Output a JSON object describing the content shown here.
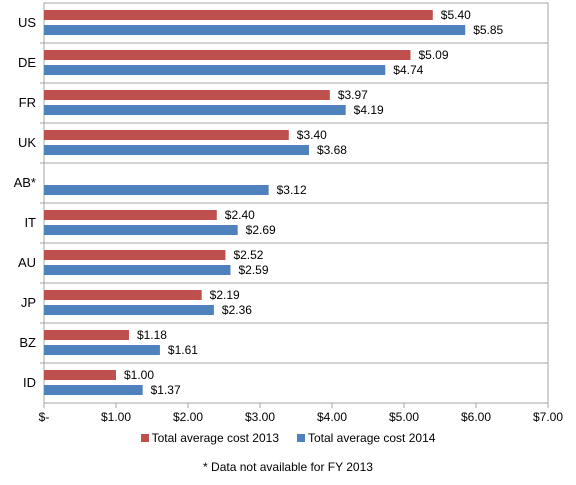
{
  "chart_data": {
    "type": "bar",
    "orientation": "horizontal",
    "categories": [
      "US",
      "DE",
      "FR",
      "UK",
      "AB*",
      "IT",
      "AU",
      "JP",
      "BZ",
      "ID"
    ],
    "series": [
      {
        "name": "Total average cost 2013",
        "color": "#c0504d",
        "values": [
          5.4,
          5.09,
          3.97,
          3.4,
          null,
          2.4,
          2.52,
          2.19,
          1.18,
          1.0
        ],
        "labels": [
          "$5.40",
          "$5.09",
          "$3.97",
          "$3.40",
          null,
          "$2.40",
          "$2.52",
          "$2.19",
          "$1.18",
          "$1.00"
        ]
      },
      {
        "name": "Total average cost 2014",
        "color": "#4f81bd",
        "values": [
          5.85,
          4.74,
          4.19,
          3.68,
          3.12,
          2.69,
          2.59,
          2.36,
          1.61,
          1.37
        ],
        "labels": [
          "$5.85",
          "$4.74",
          "$4.19",
          "$3.68",
          "$3.12",
          "$2.69",
          "$2.59",
          "$2.36",
          "$1.61",
          "$1.37"
        ]
      }
    ],
    "xlim": [
      0,
      7
    ],
    "xticks": [
      0,
      1,
      2,
      3,
      4,
      5,
      6,
      7
    ],
    "xtick_labels": [
      "$-",
      "$1.00",
      "$2.00",
      "$3.00",
      "$4.00",
      "$5.00",
      "$6.00",
      "$7.00"
    ],
    "title": "",
    "xlabel": "",
    "ylabel": "",
    "grid": "horizontal category separators",
    "legend_position": "bottom"
  },
  "footnote": "* Data not available for FY 2013"
}
